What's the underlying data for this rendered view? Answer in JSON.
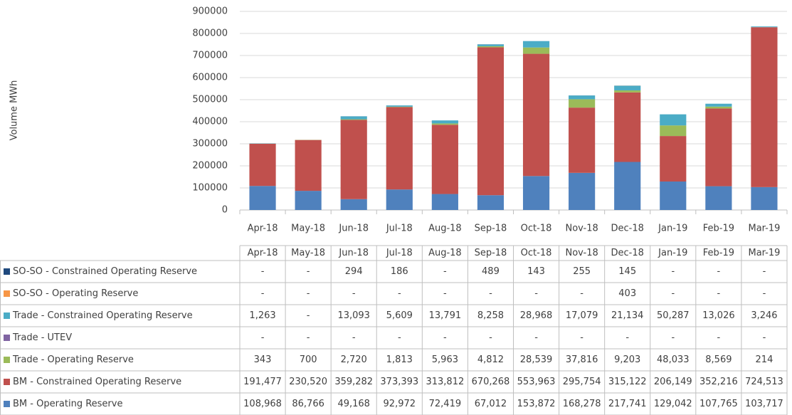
{
  "chart_data": {
    "type": "stacked-bar",
    "y_label": "Volume MWh",
    "categories": [
      "Apr-18",
      "May-18",
      "Jun-18",
      "Jul-18",
      "Aug-18",
      "Sep-18",
      "Oct-18",
      "Nov-18",
      "Dec-18",
      "Jan-19",
      "Feb-19",
      "Mar-19"
    ],
    "ylim": [
      0,
      900000
    ],
    "yticks": [
      0,
      100000,
      200000,
      300000,
      400000,
      500000,
      600000,
      700000,
      800000,
      900000
    ],
    "grid": true,
    "series": [
      {
        "name": "BM - Operating Reserve",
        "color": "#4f81bd",
        "values": [
          108968,
          86766,
          49168,
          92972,
          72419,
          67012,
          153872,
          168278,
          217741,
          129042,
          107765,
          103717
        ],
        "value_labels": [
          "108,968",
          "86,766",
          "49,168",
          "92,972",
          "72,419",
          "67,012",
          "153,872",
          "168,278",
          "217,741",
          "129,042",
          "107,765",
          "103,717"
        ]
      },
      {
        "name": "BM - Constrained Operating Reserve",
        "color": "#c0504d",
        "values": [
          191477,
          230520,
          359282,
          373393,
          313812,
          670268,
          553963,
          295754,
          315122,
          206149,
          352216,
          724513
        ],
        "value_labels": [
          "191,477",
          "230,520",
          "359,282",
          "373,393",
          "313,812",
          "670,268",
          "553,963",
          "295,754",
          "315,122",
          "206,149",
          "352,216",
          "724,513"
        ]
      },
      {
        "name": "Trade - Operating Reserve",
        "color": "#9bbb59",
        "values": [
          343,
          700,
          2720,
          1813,
          5963,
          4812,
          28539,
          37816,
          9203,
          48033,
          8569,
          214
        ],
        "value_labels": [
          "343",
          "700",
          "2,720",
          "1,813",
          "5,963",
          "4,812",
          "28,539",
          "37,816",
          "9,203",
          "48,033",
          "8,569",
          "214"
        ]
      },
      {
        "name": "Trade - UTEV",
        "color": "#8064a2",
        "values": [
          null,
          null,
          null,
          null,
          null,
          null,
          null,
          null,
          null,
          null,
          null,
          null
        ],
        "value_labels": [
          "-",
          "-",
          "-",
          "-",
          "-",
          "-",
          "-",
          "-",
          "-",
          "-",
          "-",
          "-"
        ]
      },
      {
        "name": "Trade - Constrained Operating Reserve",
        "color": "#4bacc6",
        "values": [
          1263,
          null,
          13093,
          5609,
          13791,
          8258,
          28968,
          17079,
          21134,
          50287,
          13026,
          3246
        ],
        "value_labels": [
          "1,263",
          "-",
          "13,093",
          "5,609",
          "13,791",
          "8,258",
          "28,968",
          "17,079",
          "21,134",
          "50,287",
          "13,026",
          "3,246"
        ]
      },
      {
        "name": "SO-SO - Operating Reserve",
        "color": "#f79646",
        "values": [
          null,
          null,
          null,
          null,
          null,
          null,
          null,
          null,
          403,
          null,
          null,
          null
        ],
        "value_labels": [
          "-",
          "-",
          "-",
          "-",
          "-",
          "-",
          "-",
          "-",
          "403",
          "-",
          "-",
          "-"
        ]
      },
      {
        "name": "SO-SO - Constrained Operating Reserve",
        "color": "#1f497d",
        "values": [
          null,
          null,
          294,
          186,
          null,
          489,
          143,
          255,
          145,
          null,
          null,
          null
        ],
        "value_labels": [
          "-",
          "-",
          "294",
          "186",
          "-",
          "489",
          "143",
          "255",
          "145",
          "-",
          "-",
          "-"
        ]
      }
    ]
  }
}
